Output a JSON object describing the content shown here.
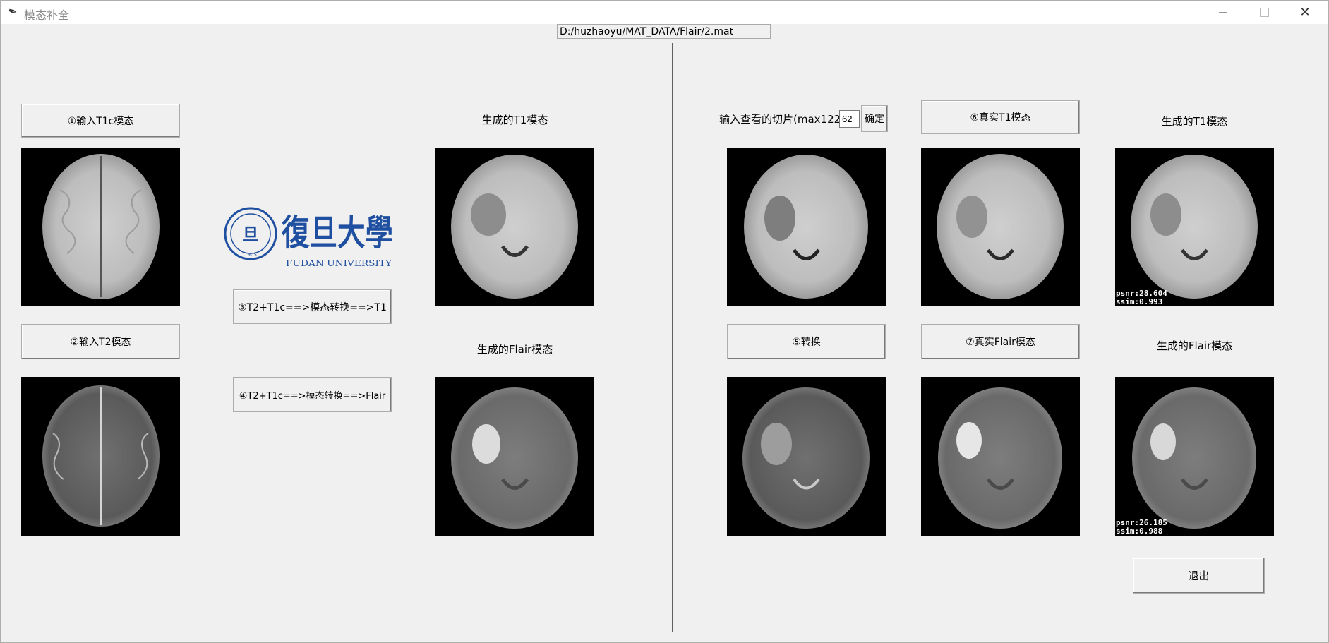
{
  "window": {
    "title": "模态补全"
  },
  "path": {
    "value": "D:/huzhaoyu/MAT_DATA/Flair/2.mat"
  },
  "left": {
    "btn_t1c": "①输入T1c模态",
    "btn_t2": "②输入T2模态",
    "btn_conv_t1": "③T2+T1c==>模态转换==>T1",
    "btn_conv_flair": "④T2+T1c==>模态转换==>Flair",
    "gen_t1_label": "生成的T1模态",
    "gen_flair_label": "生成的Flair模态"
  },
  "logo": {
    "main_text": "復旦大學",
    "sub_text": "FUDAN UNIVERSITY",
    "seal_year": "1905"
  },
  "right": {
    "slice_label": "输入查看的切片(max122)",
    "slice_value": "62",
    "confirm_btn": "确定",
    "btn_real_t1": "⑥真实T1模态",
    "gen_t1_label": "生成的T1模态",
    "btn_convert": "⑤转换",
    "btn_real_flair": "⑦真实Flair模态",
    "gen_flair_label": "生成的Flair模态",
    "t1_psnr": "psnr:28.604",
    "t1_ssim": "ssim:0.993",
    "flair_psnr": "psnr:26.185",
    "flair_ssim": "ssim:0.988",
    "exit_btn": "退出"
  },
  "colors": {
    "logo_blue": "#1f4fa0",
    "background": "#f0f0f0",
    "image_bg": "#000000"
  }
}
